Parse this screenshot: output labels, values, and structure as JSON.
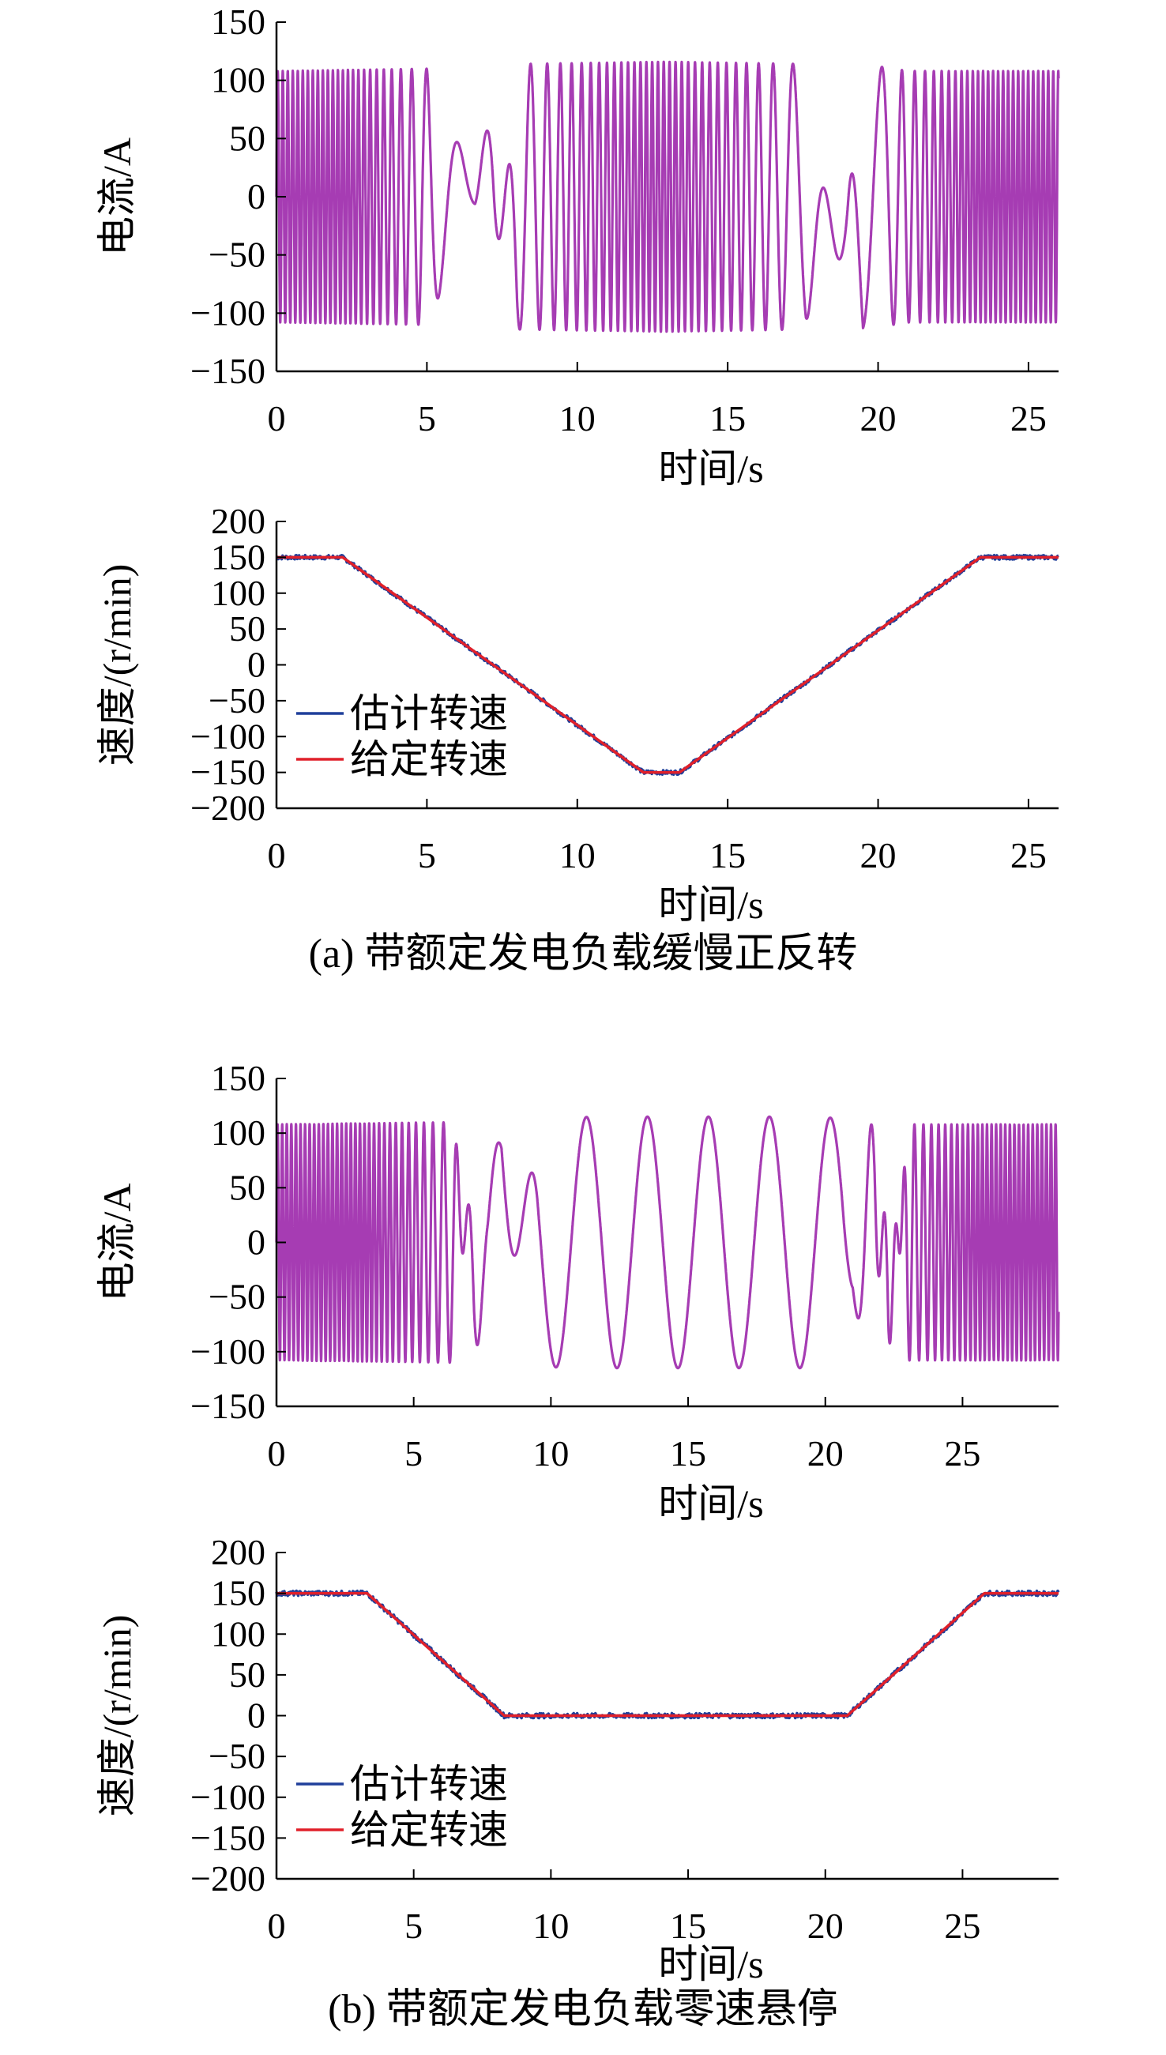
{
  "captions": {
    "a": "(a) 带额定发电负载缓慢正反转",
    "b": "(b) 带额定发电负载零速悬停"
  },
  "colors": {
    "current": "#A63CB3",
    "estimated": "#1F3F9A",
    "reference": "#E0202A",
    "axis": "#000000"
  },
  "chart_data": [
    {
      "id": "a-current",
      "type": "line",
      "xlabel": "时间/s",
      "ylabel": "电流/A",
      "xlim": [
        0,
        26
      ],
      "ylim": [
        -150,
        150
      ],
      "xticks": [
        0,
        5,
        10,
        15,
        20,
        25
      ],
      "yticks": [
        -150,
        -100,
        -50,
        0,
        50,
        100,
        150
      ],
      "series": [
        {
          "color": "#A63CB3",
          "kind": "sinusoid",
          "amplitude": [
            [
              0,
              108
            ],
            [
              5,
              110
            ],
            [
              6.6,
              12
            ],
            [
              7.2,
              -108
            ],
            [
              8,
              114
            ],
            [
              13,
              116
            ],
            [
              17.6,
              114
            ],
            [
              19,
              -116
            ],
            [
              19.5,
              114
            ],
            [
              21,
              108
            ],
            [
              26,
              108
            ]
          ],
          "frequency_hz": [
            [
              0,
              6.0
            ],
            [
              2.4,
              6.0
            ],
            [
              5.5,
              0.75
            ],
            [
              6.5,
              0.6
            ],
            [
              7.6,
              0.75
            ],
            [
              12.3,
              5.2
            ],
            [
              13.0,
              5.2
            ],
            [
              17.7,
              0.7
            ],
            [
              18.9,
              0.45
            ],
            [
              20,
              0.8
            ],
            [
              23.4,
              6.0
            ],
            [
              26,
              6.0
            ]
          ]
        }
      ]
    },
    {
      "id": "a-speed",
      "type": "line",
      "xlabel": "时间/s",
      "ylabel": "速度/(r/min)",
      "xlim": [
        0,
        26
      ],
      "ylim": [
        -200,
        200
      ],
      "xticks": [
        0,
        5,
        10,
        15,
        20,
        25
      ],
      "yticks": [
        -200,
        -150,
        -100,
        -50,
        0,
        50,
        100,
        150,
        200
      ],
      "legend": {
        "position": "lower-left",
        "entries": [
          "估计转速",
          "给定转速"
        ]
      },
      "series": [
        {
          "name": "估计转速",
          "color": "#1F3F9A",
          "x": [
            0,
            2.2,
            12.2,
            13.4,
            23.4,
            26
          ],
          "y": [
            150,
            150,
            -150,
            -150,
            150,
            150
          ],
          "noise": 3
        },
        {
          "name": "给定转速",
          "color": "#E0202A",
          "x": [
            0,
            2.2,
            12.2,
            13.4,
            23.4,
            26
          ],
          "y": [
            150,
            150,
            -150,
            -150,
            150,
            150
          ],
          "noise": 0
        }
      ]
    },
    {
      "id": "b-current",
      "type": "line",
      "xlabel": "时间/s",
      "ylabel": "电流/A",
      "xlim": [
        0,
        28.5
      ],
      "ylim": [
        -150,
        150
      ],
      "xticks": [
        0,
        5,
        10,
        15,
        20,
        25
      ],
      "yticks": [
        -150,
        -100,
        -50,
        0,
        50,
        100,
        150
      ],
      "series": [
        {
          "color": "#A63CB3",
          "kind": "sinusoid",
          "amplitude": [
            [
              0,
              108
            ],
            [
              6.5,
              110
            ],
            [
              7.2,
              -110
            ],
            [
              7.7,
              -50
            ],
            [
              8.2,
              -110
            ],
            [
              9.5,
              114
            ],
            [
              12,
              115
            ],
            [
              20,
              115
            ],
            [
              20.6,
              112
            ],
            [
              21,
              55
            ],
            [
              21.8,
              118
            ],
            [
              22.3,
              -112
            ],
            [
              23,
              108
            ],
            [
              28.5,
              108
            ]
          ],
          "frequency_hz": [
            [
              0,
              6.0
            ],
            [
              3.2,
              6.0
            ],
            [
              7.0,
              1.2
            ],
            [
              8.2,
              0.45
            ],
            [
              20.8,
              0.45
            ],
            [
              21.4,
              1.0
            ],
            [
              22.2,
              1.5
            ],
            [
              25.7,
              6.0
            ],
            [
              28.5,
              6.0
            ]
          ]
        }
      ]
    },
    {
      "id": "b-speed",
      "type": "line",
      "xlabel": "时间/s",
      "ylabel": "速度/(r/min)",
      "xlim": [
        0,
        28.5
      ],
      "ylim": [
        -200,
        200
      ],
      "xticks": [
        0,
        5,
        10,
        15,
        20,
        25
      ],
      "yticks": [
        -200,
        -150,
        -100,
        -50,
        0,
        50,
        100,
        150,
        200
      ],
      "legend": {
        "position": "lower-left",
        "entries": [
          "估计转速",
          "给定转速"
        ]
      },
      "series": [
        {
          "name": "估计转速",
          "color": "#1F3F9A",
          "x": [
            0,
            3.3,
            8.3,
            20.8,
            25.8,
            28.5
          ],
          "y": [
            150,
            150,
            0,
            0,
            150,
            150
          ],
          "noise": 3
        },
        {
          "name": "给定转速",
          "color": "#E0202A",
          "x": [
            0,
            3.3,
            8.3,
            20.8,
            25.8,
            28.5
          ],
          "y": [
            150,
            150,
            0,
            0,
            150,
            150
          ],
          "noise": 0
        }
      ]
    }
  ]
}
